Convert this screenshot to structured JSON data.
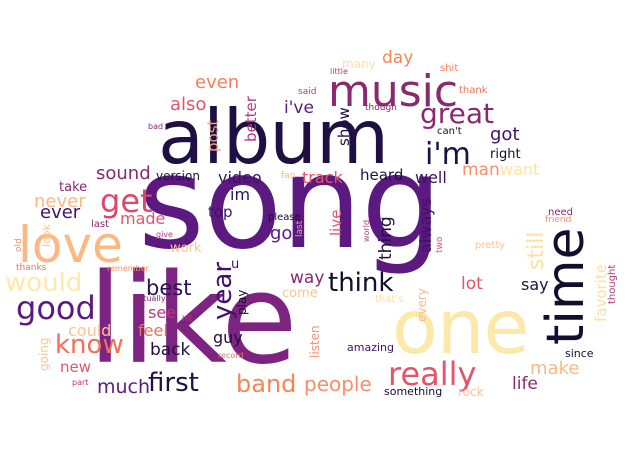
{
  "words": [
    {
      "id": "song",
      "text": "song",
      "color": "#5c1a80",
      "vertical": false
    },
    {
      "id": "like",
      "text": "like",
      "color": "#7d2482",
      "vertical": false
    },
    {
      "id": "album",
      "text": "album",
      "color": "#1f1044",
      "vertical": false
    },
    {
      "id": "one",
      "text": "one",
      "color": "#fce8a8",
      "vertical": false
    },
    {
      "id": "time",
      "text": "time",
      "color": "#130d2e",
      "vertical": true
    },
    {
      "id": "music",
      "text": "music",
      "color": "#8a2a6e",
      "vertical": false
    },
    {
      "id": "love",
      "text": "love",
      "color": "#fcb882",
      "vertical": false
    },
    {
      "id": "im",
      "text": "i'm",
      "color": "#1f1044",
      "vertical": false
    },
    {
      "id": "great",
      "text": "great",
      "color": "#8a2a6e",
      "vertical": false
    },
    {
      "id": "really",
      "text": "really",
      "color": "#e6536a",
      "vertical": false
    },
    {
      "id": "good",
      "text": "good",
      "color": "#5c1a80",
      "vertical": false
    },
    {
      "id": "get",
      "text": "get",
      "color": "#d94a6a",
      "vertical": false
    },
    {
      "id": "think",
      "text": "think",
      "color": "#130d2e",
      "vertical": false
    },
    {
      "id": "know",
      "text": "know",
      "color": "#f07058",
      "vertical": false
    },
    {
      "id": "would",
      "text": "would",
      "color": "#fde9a9",
      "vertical": false
    },
    {
      "id": "first",
      "text": "first",
      "color": "#1f1044",
      "vertical": false
    },
    {
      "id": "band",
      "text": "band",
      "color": "#f08858",
      "vertical": false
    },
    {
      "id": "year",
      "text": "year",
      "color": "#3e1266",
      "vertical": true
    },
    {
      "id": "still",
      "text": "still",
      "color": "#fde0a0",
      "vertical": true
    },
    {
      "id": "people",
      "text": "people",
      "color": "#f68f6a",
      "vertical": false
    },
    {
      "id": "best",
      "text": "best",
      "color": "#2a1158",
      "vertical": false
    },
    {
      "id": "got",
      "text": "got",
      "color": "#3e1266",
      "vertical": false
    },
    {
      "id": "even",
      "text": "even",
      "color": "#f47f58",
      "vertical": false
    },
    {
      "id": "also",
      "text": "also",
      "color": "#e0566a",
      "vertical": false
    },
    {
      "id": "sound",
      "text": "sound",
      "color": "#8a2a6e",
      "vertical": false
    },
    {
      "id": "never",
      "text": "never",
      "color": "#fcb882",
      "vertical": false
    },
    {
      "id": "ever",
      "text": "ever",
      "color": "#3e1266",
      "vertical": false
    },
    {
      "id": "made",
      "text": "made",
      "color": "#e6536a",
      "vertical": false
    },
    {
      "id": "day",
      "text": "day",
      "color": "#f08858",
      "vertical": false
    },
    {
      "id": "ive",
      "text": "i've",
      "color": "#5c1a80",
      "vertical": false
    },
    {
      "id": "better",
      "text": "better",
      "color": "#b8397a",
      "vertical": true
    },
    {
      "id": "post",
      "text": "post",
      "color": "#f3a07a",
      "vertical": true
    },
    {
      "id": "show",
      "text": "show",
      "color": "#1f1044",
      "vertical": true
    },
    {
      "id": "track",
      "text": "track",
      "color": "#e6536a",
      "vertical": false
    },
    {
      "id": "heard",
      "text": "heard",
      "color": "#1f1044",
      "vertical": false
    },
    {
      "id": "well",
      "text": "well",
      "color": "#3e1266",
      "vertical": false
    },
    {
      "id": "man",
      "text": "man",
      "color": "#f68f6a",
      "vertical": false
    },
    {
      "id": "want",
      "text": "want",
      "color": "#fde3a4",
      "vertical": false
    },
    {
      "id": "right",
      "text": "right",
      "color": "#130d2e",
      "vertical": false
    },
    {
      "id": "version",
      "text": "version",
      "color": "#1f1044",
      "vertical": false
    },
    {
      "id": "video",
      "text": "video",
      "color": "#3e1266",
      "vertical": false
    },
    {
      "id": "im2",
      "text": "im",
      "color": "#2a1158",
      "vertical": false
    },
    {
      "id": "top",
      "text": "top",
      "color": "#3e1266",
      "vertical": false
    },
    {
      "id": "go",
      "text": "go",
      "color": "#5c1a80",
      "vertical": false
    },
    {
      "id": "thing",
      "text": "thing",
      "color": "#1f1044",
      "vertical": true
    },
    {
      "id": "always",
      "text": "always",
      "color": "#3e1266",
      "vertical": true
    },
    {
      "id": "live",
      "text": "live",
      "color": "#e6536a",
      "vertical": true
    },
    {
      "id": "way",
      "text": "way",
      "color": "#8a2a6e",
      "vertical": false
    },
    {
      "id": "lot",
      "text": "lot",
      "color": "#e6536a",
      "vertical": false
    },
    {
      "id": "say",
      "text": "say",
      "color": "#1f1044",
      "vertical": false
    },
    {
      "id": "take",
      "text": "take",
      "color": "#8a2a6e",
      "vertical": false
    },
    {
      "id": "see",
      "text": "see",
      "color": "#b8397a",
      "vertical": false
    },
    {
      "id": "feel",
      "text": "feel",
      "color": "#f07058",
      "vertical": false
    },
    {
      "id": "could",
      "text": "could",
      "color": "#fcc494",
      "vertical": false
    },
    {
      "id": "back",
      "text": "back",
      "color": "#1f1044",
      "vertical": false
    },
    {
      "id": "guy",
      "text": "guy",
      "color": "#1f1044",
      "vertical": false
    },
    {
      "id": "new",
      "text": "new",
      "color": "#e0566a",
      "vertical": false
    },
    {
      "id": "much",
      "text": "much",
      "color": "#5c1a80",
      "vertical": false
    },
    {
      "id": "make",
      "text": "make",
      "color": "#fcb882",
      "vertical": false
    },
    {
      "id": "life",
      "text": "life",
      "color": "#8a2a6e",
      "vertical": false
    },
    {
      "id": "work",
      "text": "work",
      "color": "#fcc494",
      "vertical": false
    },
    {
      "id": "u",
      "text": "u",
      "color": "#3e1266",
      "vertical": false
    },
    {
      "id": "play",
      "text": "play",
      "color": "#130d2e",
      "vertical": true
    },
    {
      "id": "come",
      "text": "come",
      "color": "#fcc494",
      "vertical": false
    },
    {
      "id": "listen",
      "text": "listen",
      "color": "#f68f6a",
      "vertical": true
    },
    {
      "id": "amazing",
      "text": "amazing",
      "color": "#3e1266",
      "vertical": false
    },
    {
      "id": "since",
      "text": "since",
      "color": "#130d2e",
      "vertical": false
    },
    {
      "id": "something",
      "text": "something",
      "color": "#130d2e",
      "vertical": false
    },
    {
      "id": "rock",
      "text": "rock",
      "color": "#fcc494",
      "vertical": false
    },
    {
      "id": "every",
      "text": "every",
      "color": "#fcb882",
      "vertical": true
    },
    {
      "id": "favorite",
      "text": "favorite",
      "color": "#fde0a0",
      "vertical": true
    },
    {
      "id": "thought",
      "text": "thought",
      "color": "#b8397a",
      "vertical": true
    },
    {
      "id": "need",
      "text": "need",
      "color": "#8a2a6e",
      "vertical": false
    },
    {
      "id": "friend",
      "text": "friend",
      "color": "#f68f6a",
      "vertical": false
    },
    {
      "id": "pretty",
      "text": "pretty",
      "color": "#fcc494",
      "vertical": false
    },
    {
      "id": "thats",
      "text": "that's",
      "color": "#fde0a0",
      "vertical": false
    },
    {
      "id": "two",
      "text": "two",
      "color": "#e6536a",
      "vertical": true
    },
    {
      "id": "world",
      "text": "world",
      "color": "#b8397a",
      "vertical": true
    },
    {
      "id": "please",
      "text": "please",
      "color": "#130d2e",
      "vertical": false
    },
    {
      "id": "last2",
      "text": "last",
      "color": "#f3a07a",
      "vertical": true
    },
    {
      "id": "last",
      "text": "last",
      "color": "#8a2a6e",
      "vertical": false
    },
    {
      "id": "give",
      "text": "give",
      "color": "#b8397a",
      "vertical": false
    },
    {
      "id": "look",
      "text": "look",
      "color": "#fcc494",
      "vertical": true
    },
    {
      "id": "old",
      "text": "old",
      "color": "#f68f6a",
      "vertical": true
    },
    {
      "id": "thanks",
      "text": "thanks",
      "color": "#f07058",
      "vertical": false
    },
    {
      "id": "remember",
      "text": "remember",
      "color": "#f68f6a",
      "vertical": false
    },
    {
      "id": "actually",
      "text": "actually",
      "color": "#8a2a6e",
      "vertical": false
    },
    {
      "id": "hit",
      "text": "hit",
      "color": "#b8397a",
      "vertical": false
    },
    {
      "id": "going",
      "text": "going",
      "color": "#fcc494",
      "vertical": true
    },
    {
      "id": "part",
      "text": "part",
      "color": "#b8397a",
      "vertical": false
    },
    {
      "id": "record",
      "text": "record",
      "color": "#f07058",
      "vertical": false
    },
    {
      "id": "fan",
      "text": "fan",
      "color": "#fcb882",
      "vertical": false
    },
    {
      "id": "many",
      "text": "many",
      "color": "#fde0a0",
      "vertical": false
    },
    {
      "id": "shit",
      "text": "shit",
      "color": "#f47f58",
      "vertical": false
    },
    {
      "id": "little",
      "text": "little",
      "color": "#b8397a",
      "vertical": false
    },
    {
      "id": "said",
      "text": "said",
      "color": "#b8397a",
      "vertical": false
    },
    {
      "id": "thank",
      "text": "thank",
      "color": "#f07058",
      "vertical": false
    },
    {
      "id": "though",
      "text": "though",
      "color": "#8a2a6e",
      "vertical": false
    },
    {
      "id": "bad",
      "text": "bad",
      "color": "#8a2a6e",
      "vertical": false
    },
    {
      "id": "cant",
      "text": "can't",
      "color": "#130d2e",
      "vertical": false
    }
  ]
}
